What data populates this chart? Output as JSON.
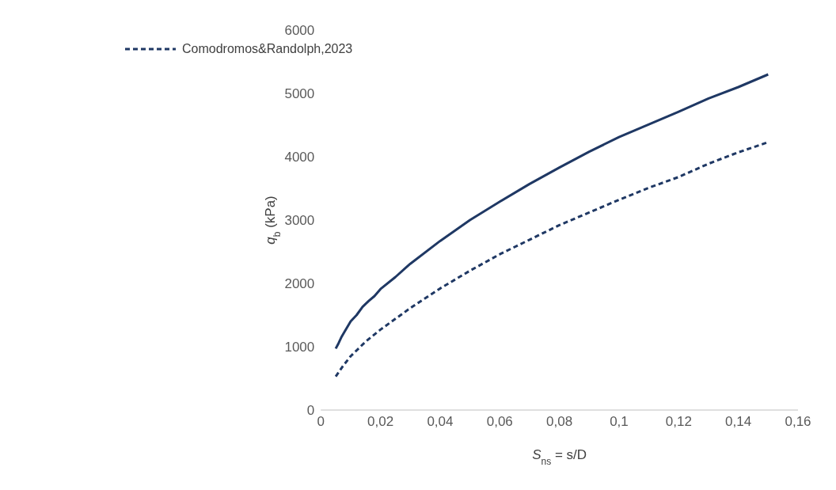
{
  "chart_data": {
    "type": "line",
    "xlabel": "S$_{ns}$ = s/D",
    "ylabel": "q$_{b}$ (kPa)",
    "xlim": [
      0,
      0.16
    ],
    "xticks": [
      0,
      {
        "value": 0.02,
        "label": "0,02"
      },
      {
        "value": 0.04,
        "label": "0,04"
      },
      {
        "value": 0.06,
        "label": "0,06"
      },
      {
        "value": 0.08,
        "label": "0,08"
      },
      {
        "value": 0.1,
        "label": "0,1"
      },
      {
        "value": 0.12,
        "label": "0,12"
      },
      {
        "value": 0.14,
        "label": "0,14"
      },
      {
        "value": 0.16,
        "label": "0,16"
      }
    ],
    "ylim": [
      0,
      6000
    ],
    "yticks": [
      0,
      1000,
      2000,
      3000,
      4000,
      5000,
      6000
    ],
    "grid": false,
    "legend": "top left",
    "marker": "none",
    "series": [
      {
        "color": "#1f3864",
        "line_style": "solid",
        "x": [
          0.005,
          0.006,
          0.007,
          0.008,
          0.01,
          0.012,
          0.014,
          0.016,
          0.018,
          0.02,
          0.025,
          0.03,
          0.04,
          0.05,
          0.06,
          0.07,
          0.08,
          0.09,
          0.1,
          0.11,
          0.12,
          0.13,
          0.14,
          0.15
        ],
        "values": [
          970,
          1060,
          1160,
          1240,
          1400,
          1500,
          1630,
          1720,
          1800,
          1910,
          2100,
          2310,
          2670,
          3000,
          3290,
          3570,
          3830,
          4080,
          4310,
          4510,
          4710,
          4920,
          5100,
          5300
        ]
      },
      {
        "name": "Comodromos&Randolph,2023",
        "color": "#1f3864",
        "line_style": "dashed",
        "x": [
          0.005,
          0.0075,
          0.01,
          0.015,
          0.02,
          0.03,
          0.04,
          0.05,
          0.06,
          0.07,
          0.08,
          0.09,
          0.1,
          0.11,
          0.12,
          0.13,
          0.14,
          0.15
        ],
        "values": [
          530,
          700,
          850,
          1080,
          1270,
          1610,
          1920,
          2200,
          2460,
          2690,
          2920,
          3120,
          3320,
          3510,
          3680,
          3890,
          4070,
          4230
        ]
      }
    ]
  }
}
